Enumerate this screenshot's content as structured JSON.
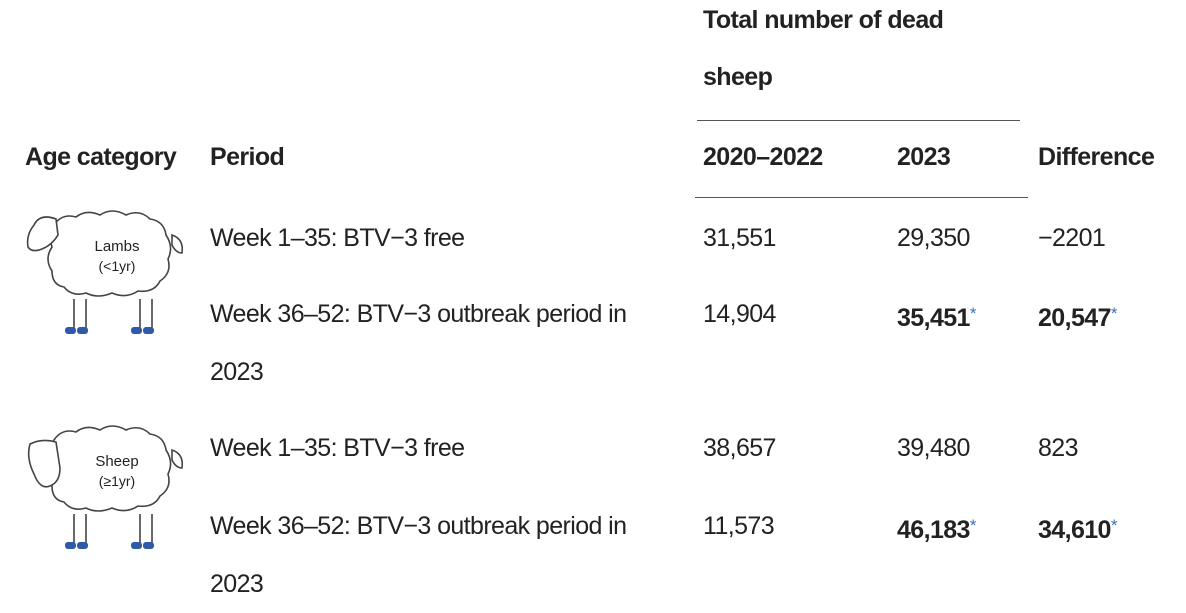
{
  "table": {
    "header": {
      "group": "Total number of dead sheep",
      "columns": [
        "Age category",
        "Period",
        "2020–2022",
        "2023",
        "Difference"
      ]
    },
    "groups": [
      {
        "label": "Lambs",
        "sublabel": "(<1yr)",
        "rows": [
          {
            "period": "Week 1–35: BTV−3 free",
            "cells": [
              {
                "text": "31,551"
              },
              {
                "text": "29,350"
              },
              {
                "text": "−2201"
              }
            ]
          },
          {
            "period": "Week 36–52: BTV−3 outbreak period in 2023",
            "cells": [
              {
                "text": "14,904"
              },
              {
                "text": "35,451",
                "note": "*",
                "bold": true
              },
              {
                "text": "20,547",
                "note": "*",
                "bold": true
              }
            ]
          }
        ]
      },
      {
        "label": "Sheep",
        "sublabel": "(≥1yr)",
        "rows": [
          {
            "period": "Week 1–35: BTV−3 free",
            "cells": [
              {
                "text": "38,657"
              },
              {
                "text": "39,480"
              },
              {
                "text": "823"
              }
            ]
          },
          {
            "period": "Week 36–52: BTV−3 outbreak period in 2023",
            "cells": [
              {
                "text": "11,573"
              },
              {
                "text": "46,183",
                "note": "*",
                "bold": true
              },
              {
                "text": "34,610",
                "note": "*",
                "bold": true
              }
            ]
          }
        ]
      }
    ]
  }
}
